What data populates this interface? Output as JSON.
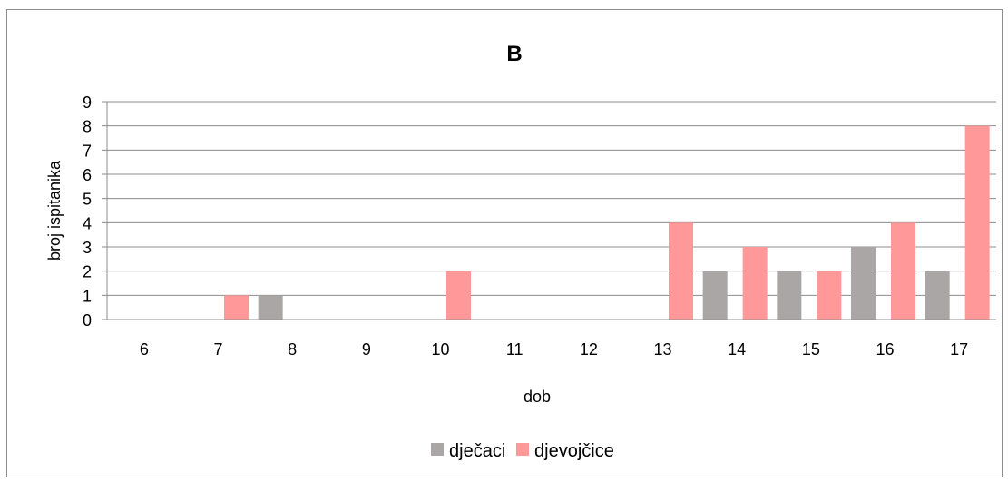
{
  "chart_data": {
    "type": "bar",
    "title": "B",
    "xlabel": "dob",
    "ylabel": "broj ispitanika",
    "categories": [
      "6",
      "7",
      "8",
      "9",
      "10",
      "11",
      "12",
      "13",
      "14",
      "15",
      "16",
      "17"
    ],
    "series": [
      {
        "name": "dječaci",
        "color": "#ABA6A6",
        "values": [
          0,
          0,
          1,
          0,
          0,
          0,
          0,
          0,
          2,
          2,
          3,
          2
        ]
      },
      {
        "name": "djevojčice",
        "color": "#FF9999",
        "values": [
          0,
          1,
          0,
          0,
          2,
          0,
          0,
          4,
          3,
          2,
          4,
          8
        ]
      }
    ],
    "ylim": [
      0,
      9
    ],
    "yticks": [
      0,
      1,
      2,
      3,
      4,
      5,
      6,
      7,
      8,
      9
    ],
    "grid": true,
    "legend_position": "bottom",
    "gridline_color": "#8c8c8c",
    "axis_color": "#8c8c8c"
  }
}
